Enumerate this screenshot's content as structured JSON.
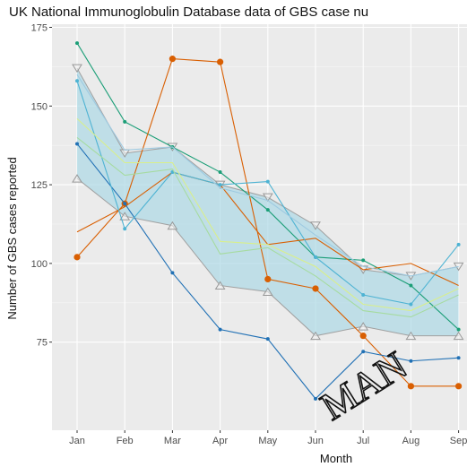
{
  "chart_data": {
    "type": "line",
    "title": "UK National Immunoglobulin Database data of GBS case nu",
    "xlabel": "Month",
    "ylabel": "Number of GBS cases reported",
    "categories": [
      "Jan",
      "Feb",
      "Mar",
      "Apr",
      "May",
      "Jun",
      "Jul",
      "Aug",
      "Sep"
    ],
    "ylim": [
      47,
      176
    ],
    "yticks": [
      75,
      100,
      125,
      150,
      175
    ],
    "grid": true,
    "panel_background": "#ebebeb",
    "band": {
      "fill": "#add8e6",
      "upper": [
        162,
        135,
        137,
        125,
        121,
        112,
        98,
        96,
        99
      ],
      "lower": [
        127,
        115,
        112,
        93,
        91,
        77,
        80,
        77,
        77
      ]
    },
    "series": [
      {
        "color": "#1b9e77",
        "marker": "dot",
        "values": [
          170,
          145,
          137,
          129,
          117,
          102,
          101,
          93,
          79
        ]
      },
      {
        "color": "#d95f02",
        "marker": "dot-large",
        "values": [
          102,
          119,
          165,
          164,
          95,
          92,
          77,
          61,
          61
        ]
      },
      {
        "color": "#d95f02",
        "marker": "none",
        "values": [
          110,
          118,
          129,
          125,
          106,
          108,
          98,
          100,
          93
        ]
      },
      {
        "color": "#2171b5",
        "marker": "dot",
        "values": [
          138,
          119,
          97,
          79,
          76,
          57,
          72,
          69,
          70
        ]
      },
      {
        "color": "#4eb3d3",
        "marker": "dot",
        "values": [
          158,
          111,
          129,
          125,
          126,
          102,
          90,
          87,
          106
        ]
      },
      {
        "color": "#9ecae1",
        "marker": "none",
        "values": [
          160,
          136,
          137,
          124,
          120,
          109,
          99,
          96,
          99
        ]
      },
      {
        "color": "#d9ef8b",
        "marker": "none",
        "values": [
          146,
          132,
          132,
          107,
          106,
          99,
          87,
          85,
          92
        ]
      },
      {
        "color": "#a6dba0",
        "marker": "none",
        "values": [
          140,
          128,
          130,
          103,
          105,
          96,
          85,
          83,
          90
        ]
      }
    ],
    "watermark": "MAN"
  }
}
